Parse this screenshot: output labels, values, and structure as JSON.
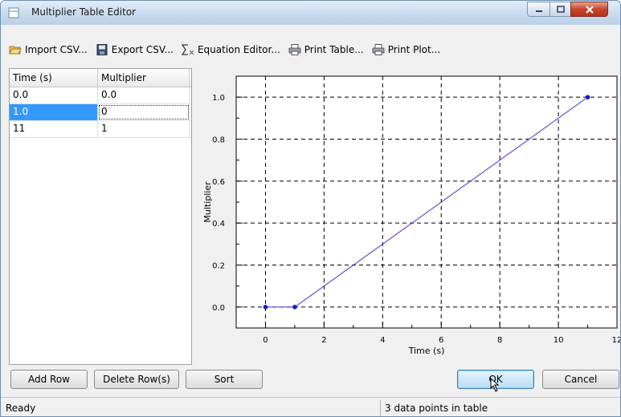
{
  "window": {
    "title": "Multiplier Table Editor"
  },
  "toolbar": {
    "items": [
      {
        "label": "Import CSV...",
        "icon": "folder-open-icon"
      },
      {
        "label": "Export CSV...",
        "icon": "floppy-disk-icon"
      },
      {
        "label": "Equation Editor...",
        "icon": "sigma-x-icon"
      },
      {
        "label": "Print Table...",
        "icon": "printer-icon"
      },
      {
        "label": "Print Plot...",
        "icon": "printer-icon"
      }
    ]
  },
  "table": {
    "columns": [
      "Time (s)",
      "Multiplier"
    ],
    "rows": [
      [
        "0.0",
        "0.0"
      ],
      [
        "1.0",
        "0"
      ],
      [
        "11",
        "1"
      ]
    ]
  },
  "chart_data": {
    "type": "line",
    "xlabel": "Time (s)",
    "ylabel": "Multiplier",
    "xlim": [
      -1,
      12
    ],
    "ylim": [
      -0.1,
      1.1
    ],
    "xticks": [
      "0",
      "2",
      "4",
      "6",
      "8",
      "10",
      "12"
    ],
    "yticks": [
      "0.0",
      "0.2",
      "0.4",
      "0.6",
      "0.8",
      "1.0"
    ],
    "grid": true,
    "series": [
      {
        "x": [
          0,
          1,
          11
        ],
        "y": [
          0,
          0,
          1
        ],
        "color": "#3a3ae0"
      }
    ]
  },
  "buttons": {
    "add_row": "Add Row",
    "delete_rows": "Delete Row(s)",
    "sort": "Sort",
    "ok": "OK",
    "cancel": "Cancel"
  },
  "status": {
    "left": "Ready",
    "right": "3 data points in table"
  }
}
